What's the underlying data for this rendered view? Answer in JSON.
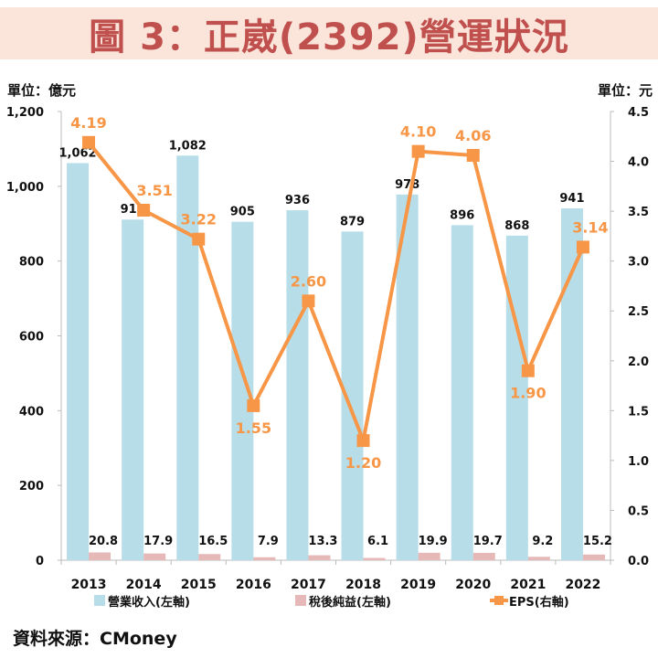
{
  "title": "圖 3：正崴(2392)營運狀況",
  "source": "資料來源：CMoney",
  "chart_data": {
    "type": "bar+line",
    "categories": [
      "2013",
      "2014",
      "2015",
      "2016",
      "2017",
      "2018",
      "2019",
      "2020",
      "2021",
      "2022"
    ],
    "left_axis": {
      "unit_label": "單位：億元",
      "range": [
        0,
        1200
      ],
      "ticks": [
        0,
        200,
        400,
        600,
        800,
        1000,
        1200
      ],
      "tick_labels": [
        "0",
        "200",
        "400",
        "600",
        "800",
        "1,000",
        "1,200"
      ]
    },
    "right_axis": {
      "unit_label": "單位：元",
      "range": [
        0,
        4.5
      ],
      "ticks": [
        0,
        0.5,
        1,
        1.5,
        2,
        2.5,
        3,
        3.5,
        4,
        4.5
      ],
      "tick_labels": [
        "0.0",
        "0.5",
        "1.0",
        "1.5",
        "2.0",
        "2.5",
        "3.0",
        "3.5",
        "4.0",
        "4.5"
      ]
    },
    "series": [
      {
        "name": "營業收入(左軸)",
        "type": "bar",
        "axis": "left",
        "color": "#b7dde8",
        "values": [
          1062,
          911,
          1082,
          905,
          936,
          879,
          978,
          896,
          868,
          941
        ],
        "labels": [
          "1,062",
          "911",
          "1,082",
          "905",
          "936",
          "879",
          "978",
          "896",
          "868",
          "941"
        ]
      },
      {
        "name": "稅後純益(左軸)",
        "type": "bar",
        "axis": "left",
        "color": "#e6b9b8",
        "values": [
          20.8,
          17.9,
          16.5,
          7.9,
          13.3,
          6.1,
          19.9,
          19.7,
          9.2,
          15.2
        ],
        "labels": [
          "20.8",
          "17.9",
          "16.5",
          "7.9",
          "13.3",
          "6.1",
          "19.9",
          "19.7",
          "9.2",
          "15.2"
        ]
      },
      {
        "name": "EPS(右軸)",
        "type": "line",
        "axis": "right",
        "color": "#f79646",
        "values": [
          4.19,
          3.51,
          3.22,
          1.55,
          2.6,
          1.2,
          4.1,
          4.06,
          1.9,
          3.14
        ],
        "labels": [
          "4.19",
          "3.51",
          "3.22",
          "1.55",
          "2.60",
          "1.20",
          "4.10",
          "4.06",
          "1.90",
          "3.14"
        ]
      }
    ],
    "legend": "bottom",
    "grid": false
  }
}
